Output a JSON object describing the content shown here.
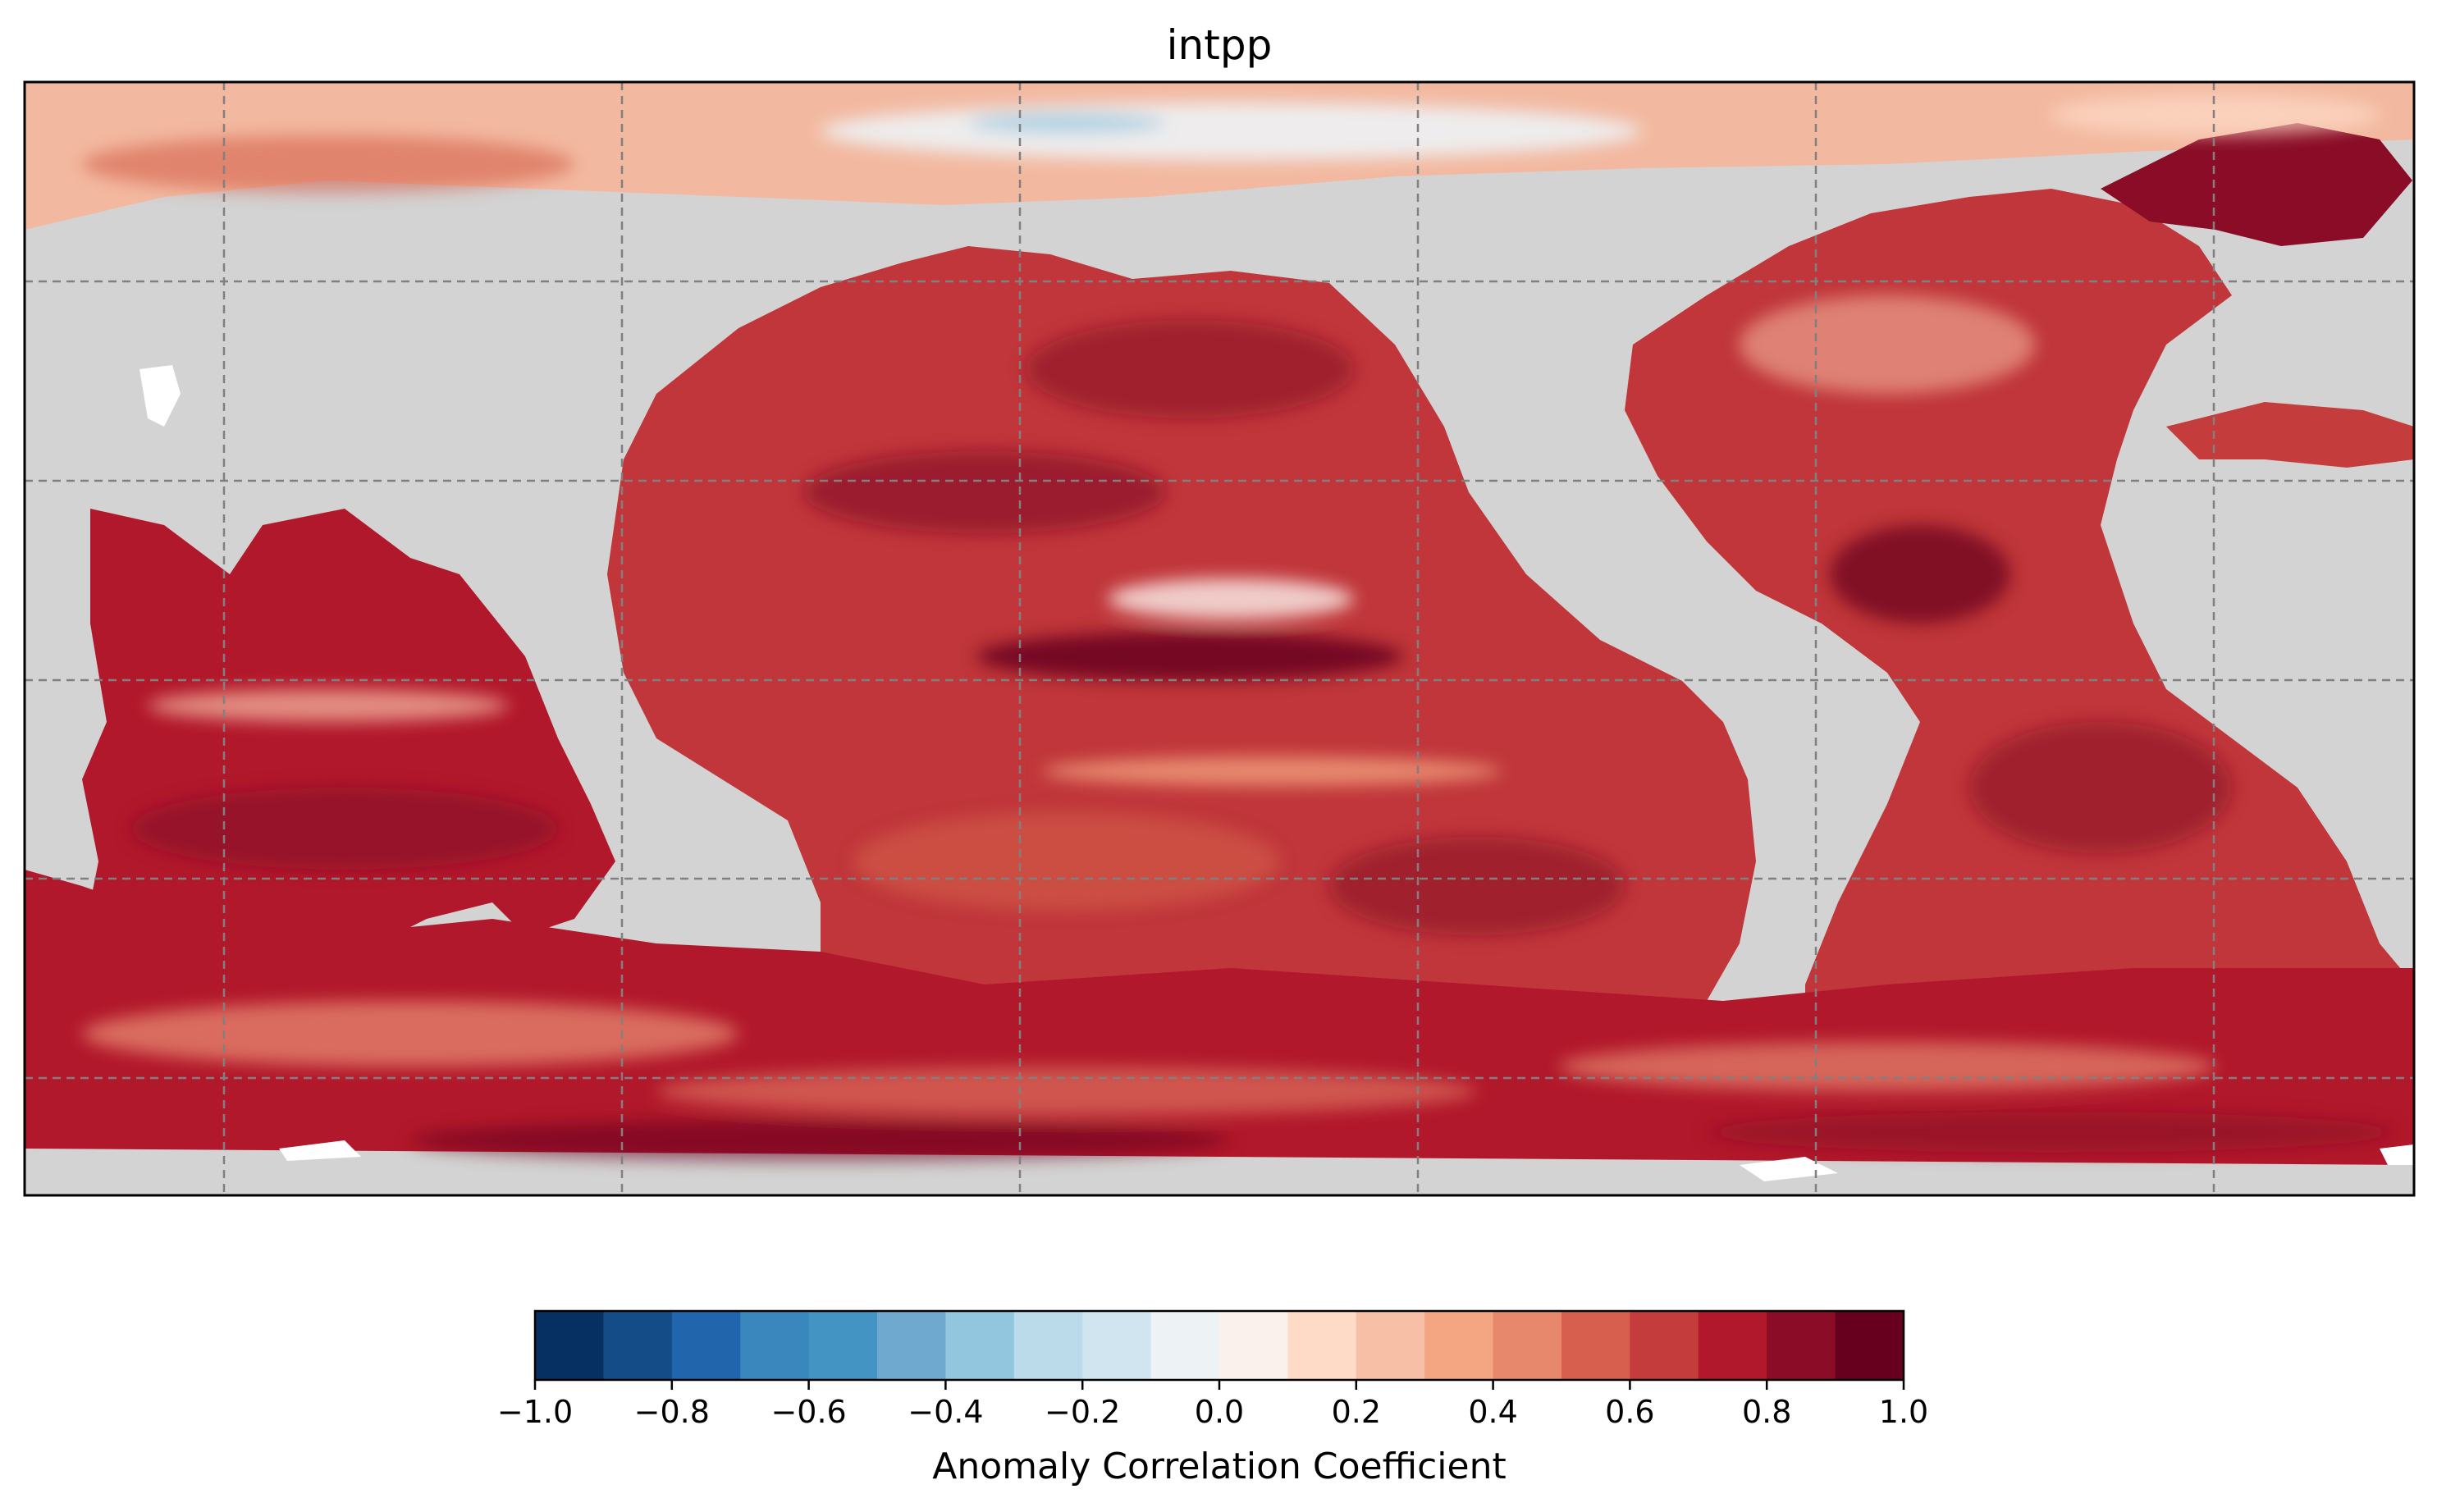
{
  "chart_data": {
    "type": "heatmap",
    "title": "intpp",
    "map": {
      "projection": "plate-carree, centered on the Pacific",
      "land_color": "#d3d3d3",
      "gridlines": "dashed",
      "grid_color": "#808080"
    },
    "colorbar": {
      "label": "Anomaly Correlation Coefficient",
      "range": [
        -1.0,
        1.0
      ],
      "ticks": [
        "−1.0",
        "−0.8",
        "−0.6",
        "−0.4",
        "−0.2",
        "0.0",
        "0.2",
        "0.4",
        "0.6",
        "0.8",
        "1.0"
      ],
      "bins": [
        "#053061",
        "#134c87",
        "#2166ac",
        "#3a87bd",
        "#4393c3",
        "#6fa9d0",
        "#92c5de",
        "#bbdaea",
        "#d1e5f0",
        "#edf2f5",
        "#fbf1ec",
        "#fddbc7",
        "#f7bfa5",
        "#f4a582",
        "#e7886c",
        "#d6604d",
        "#c43c3c",
        "#b2182b",
        "#8a0c26",
        "#67001f"
      ]
    }
  }
}
